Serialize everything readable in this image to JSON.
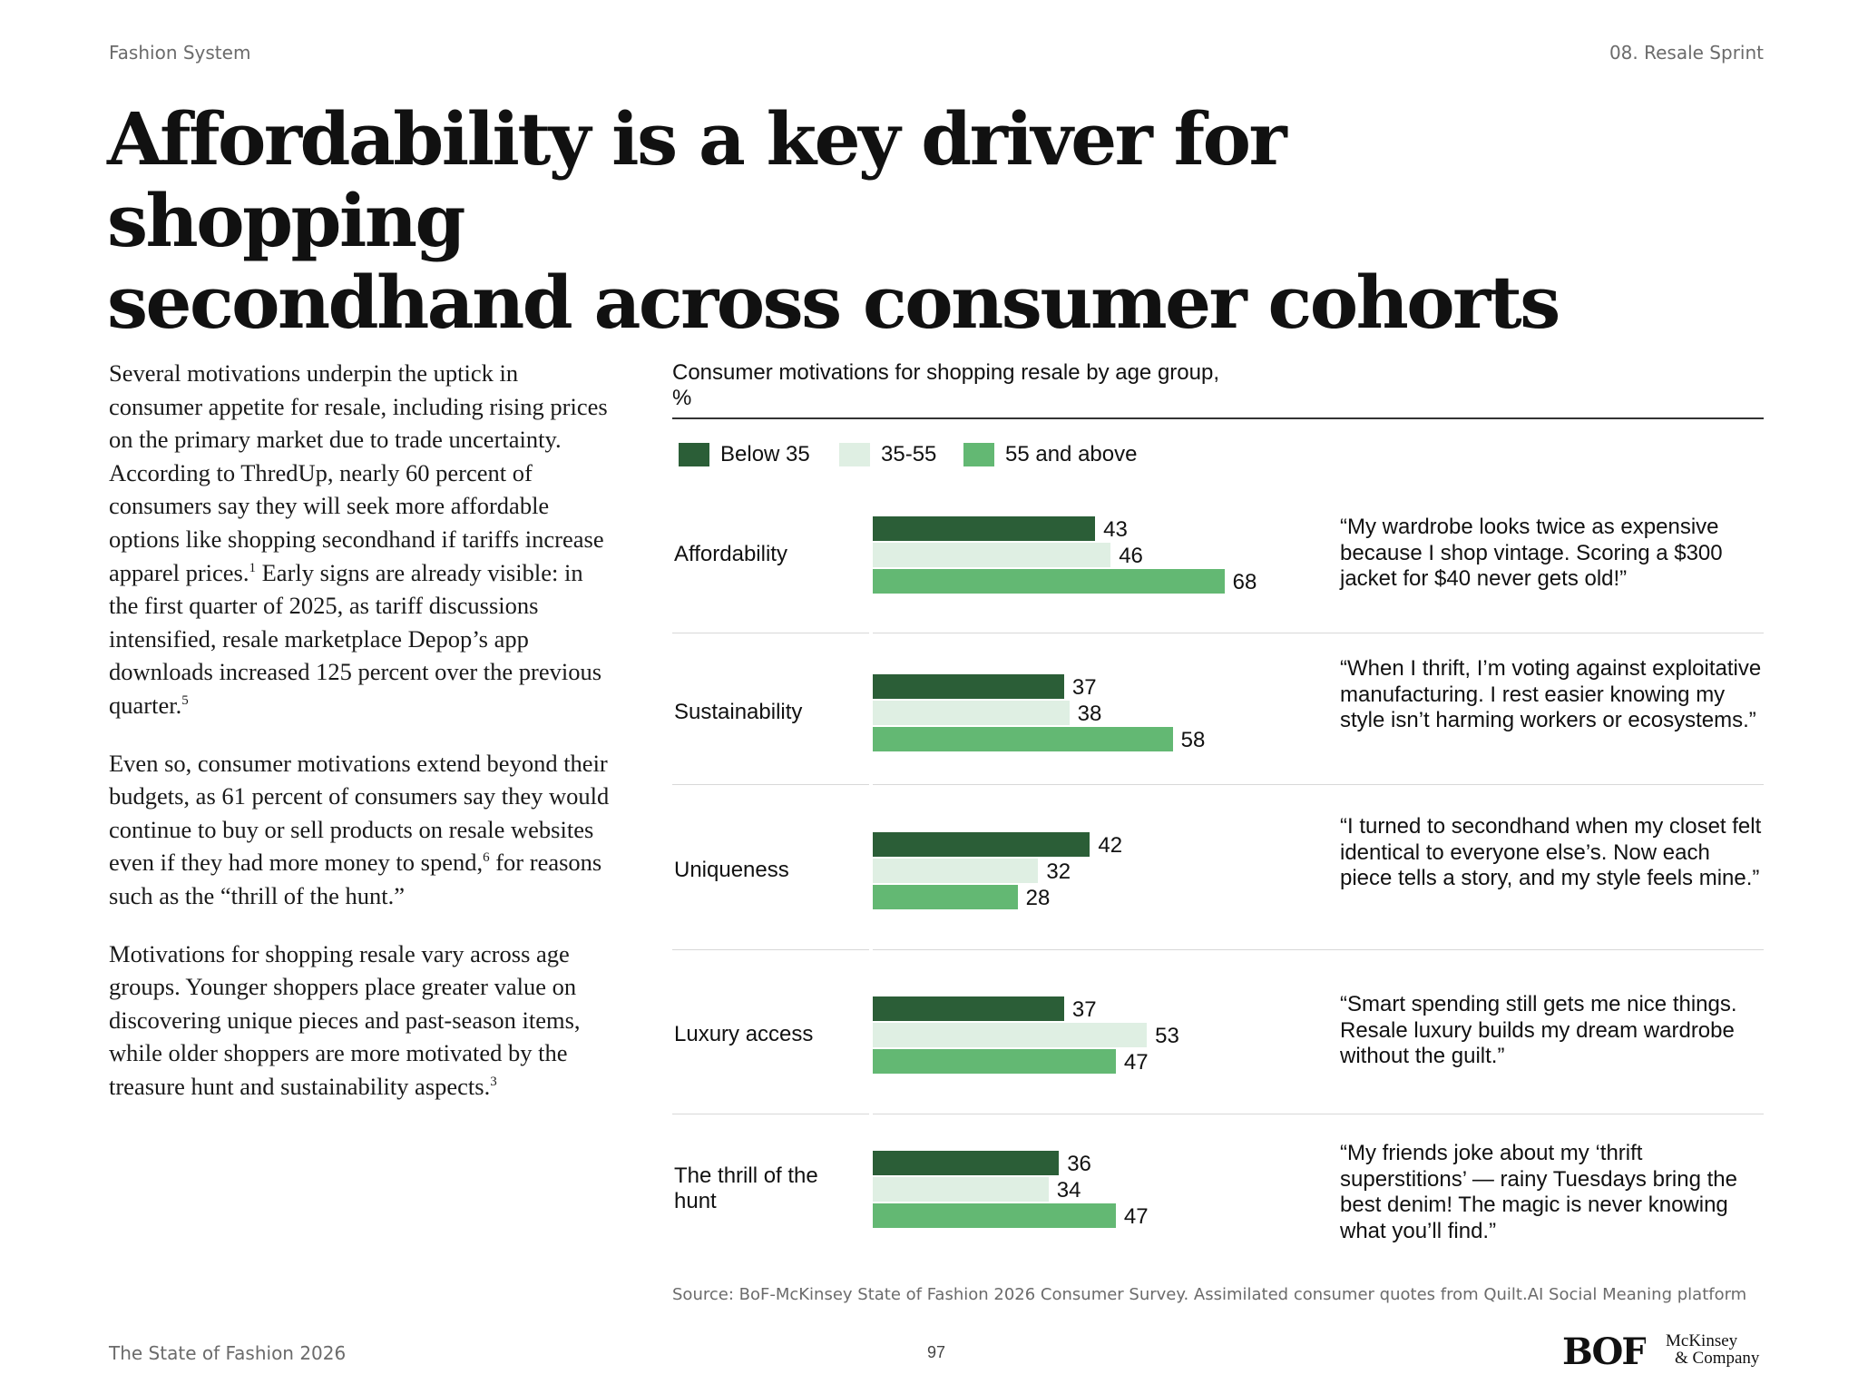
{
  "header": {
    "section": "Fashion System",
    "chapter": "08. Resale Sprint"
  },
  "title_line1": "Affordability is a key driver for shopping",
  "title_line2": "secondhand across consumer cohorts",
  "body": {
    "p1_a": "Several motivations underpin the uptick in consumer appetite for resale, including rising prices on the primary market due to trade uncertainty. According to ThredUp, nearly 60 percent of consumers say they will seek more affordable options like shopping secondhand if tariffs increase apparel prices.",
    "p1_sup1": "1",
    "p1_b": " Early signs are already visible: in the first quarter of 2025, as tariff discussions intensified, resale marketplace Depop’s app downloads increased 125 percent over the previous quarter.",
    "p1_sup2": "5",
    "p2_a": "Even so, consumer motivations extend beyond their budgets, as 61 percent of consumers say they would continue to buy or sell products on resale websites even if they had more money to spend,",
    "p2_sup": "6",
    "p2_b": " for reasons such as the “thrill of the hunt.”",
    "p3_a": "Motivations for shopping resale vary across age groups. Younger shoppers place greater value on discovering unique pieces and past-season items, while older shoppers are more motivated by the treasure hunt and sustainability aspects.",
    "p3_sup": "3"
  },
  "chart_data": {
    "type": "bar",
    "orientation": "horizontal",
    "title": "Consumer motivations for shopping resale by age group,",
    "unit_label": "%",
    "categories": [
      "Affordability",
      "Sustainability",
      "Uniqueness",
      "Luxury access",
      "The thrill of the hunt"
    ],
    "series": [
      {
        "name": "Below 35",
        "color": "#2b5e37",
        "values": [
          43,
          37,
          42,
          37,
          36
        ]
      },
      {
        "name": "35-55",
        "color": "#dfefe3",
        "values": [
          46,
          38,
          32,
          53,
          34
        ]
      },
      {
        "name": "55 and above",
        "color": "#63b873",
        "values": [
          68,
          58,
          28,
          47,
          47
        ]
      }
    ],
    "quotes": [
      "“My wardrobe looks twice as expensive because I shop vintage. Scoring a $300 jacket for $40 never gets old!”",
      "“When I thrift, I’m voting against exploitative manufacturing. I rest easier knowing my style isn’t harming workers or ecosystems.”",
      "“I turned to secondhand when my closet felt identical to everyone else’s. Now each piece tells a story, and my style feels mine.”",
      "“Smart spending still gets me nice things. Resale luxury builds my dream wardrobe without the guilt.”",
      "“My friends joke about my ‘thrift superstitions’ — rainy Tuesdays bring the best denim! The magic is never knowing what you’ll find.”"
    ],
    "legend_position": "top-left"
  },
  "source": "Source: BoF-McKinsey State of Fashion 2026 Consumer Survey. Assimilated consumer quotes from Quilt.AI Social Meaning platform",
  "footer": {
    "publication": "The State of Fashion 2026",
    "page": "97",
    "logo_bof": "BOF",
    "logo_mck_line1": "McKinsey",
    "logo_mck_line2": "& Company"
  }
}
